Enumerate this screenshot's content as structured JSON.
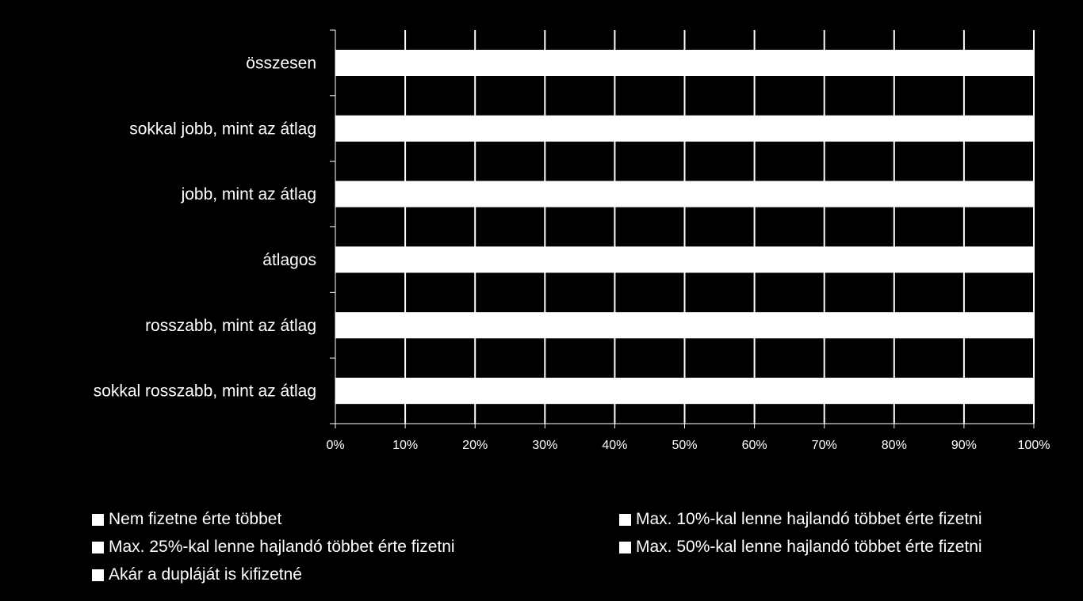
{
  "chart_data": {
    "type": "bar",
    "orientation": "horizontal",
    "stacked": true,
    "percent_stacked": true,
    "categories": [
      "összesen",
      "sokkal jobb, mint az átlag",
      "jobb, mint az átlag",
      "átlagos",
      "rosszabb, mint az átlag",
      "sokkal rosszabb, mint az átlag"
    ],
    "x_ticks": [
      "0%",
      "10%",
      "20%",
      "30%",
      "40%",
      "50%",
      "60%",
      "70%",
      "80%",
      "90%",
      "100%"
    ],
    "xlim": [
      0,
      100
    ],
    "grid": true,
    "legend_position": "bottom",
    "series": [
      {
        "name": "Nem fizetne érte többet",
        "values": [
          100,
          100,
          100,
          100,
          100,
          100
        ]
      },
      {
        "name": "Max. 10%-kal lenne hajlandó többet érte fizetni",
        "values": [
          0,
          0,
          0,
          0,
          0,
          0
        ]
      },
      {
        "name": "Max. 25%-kal lenne hajlandó többet érte fizetni",
        "values": [
          0,
          0,
          0,
          0,
          0,
          0
        ]
      },
      {
        "name": "Max. 50%-kal lenne hajlandó többet érte fizetni",
        "values": [
          0,
          0,
          0,
          0,
          0,
          0
        ]
      },
      {
        "name": "Akár a dupláját is kifizetné",
        "values": [
          0,
          0,
          0,
          0,
          0,
          0
        ]
      }
    ],
    "colors": {
      "background": "#000000",
      "bar": "#ffffff",
      "grid": "#ffffff",
      "text": "#ffffff"
    }
  }
}
